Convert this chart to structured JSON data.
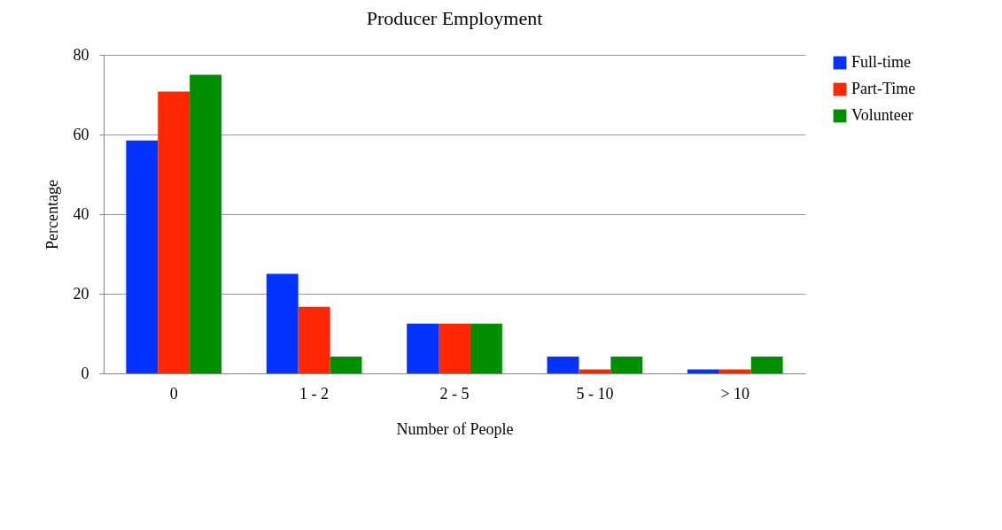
{
  "chart_data": {
    "type": "bar",
    "title": "Producer Employment",
    "xlabel": "Number of People",
    "ylabel": "Percentage",
    "categories": [
      "0",
      "1 - 2",
      "2 - 5",
      "5 - 10",
      "> 10"
    ],
    "series": [
      {
        "name": "Full-time",
        "color": "#0433ff",
        "values": [
          58.5,
          25,
          12.5,
          4.2,
          1
        ]
      },
      {
        "name": "Part-Time",
        "color": "#ff2600",
        "values": [
          70.8,
          16.7,
          12.5,
          1,
          1
        ]
      },
      {
        "name": "Volunteer",
        "color": "#008f00",
        "values": [
          75,
          4.2,
          12.5,
          4.2,
          4.2
        ]
      }
    ],
    "ylim": [
      0,
      80
    ],
    "yticks": [
      0,
      20,
      40,
      60,
      80
    ],
    "grid": "y",
    "legend": "right"
  }
}
